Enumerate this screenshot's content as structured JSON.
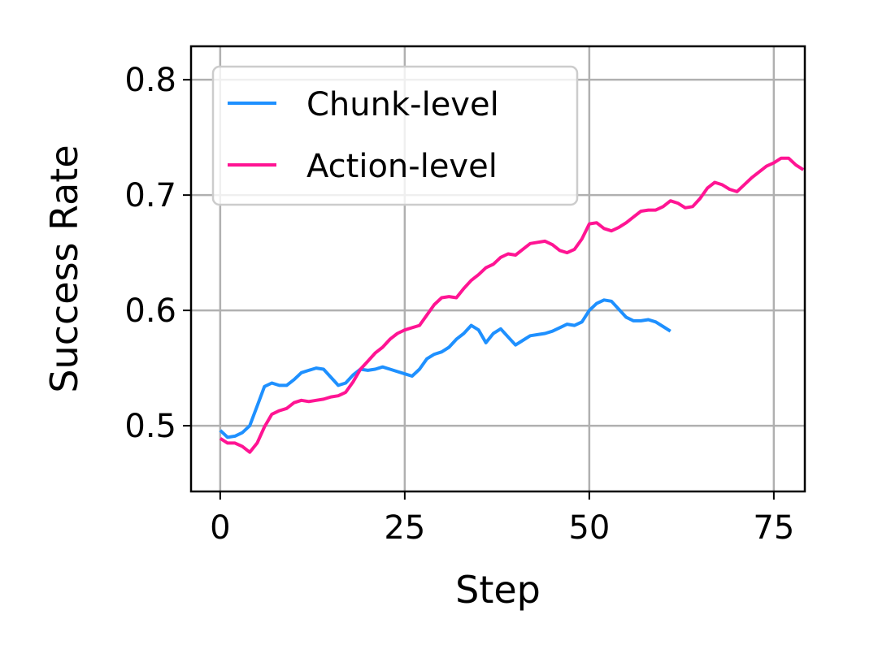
{
  "chart_data": {
    "type": "line",
    "title": "",
    "xlabel": "Step",
    "ylabel": "Success Rate",
    "xlim": [
      -3.95,
      79.2
    ],
    "ylim": [
      0.443,
      0.829
    ],
    "xticks": [
      0,
      25,
      50,
      75
    ],
    "xtick_labels": [
      "0",
      "25",
      "50",
      "75"
    ],
    "yticks": [
      0.5,
      0.6,
      0.7,
      0.8
    ],
    "ytick_labels": [
      "0.5",
      "0.6",
      "0.7",
      "0.8"
    ],
    "grid": true,
    "legend_position": "top-left",
    "series": [
      {
        "name": "Chunk-level",
        "color": "#1e90ff",
        "x": [
          0,
          1,
          2,
          3,
          4,
          5,
          6,
          7,
          8,
          9,
          10,
          11,
          12,
          13,
          14,
          15,
          16,
          17,
          18,
          19,
          20,
          21,
          22,
          23,
          24,
          25,
          26,
          27,
          28,
          29,
          30,
          31,
          32,
          33,
          34,
          35,
          36,
          37,
          38,
          39,
          40,
          41,
          42,
          43,
          44,
          45,
          46,
          47,
          48,
          49,
          50,
          51,
          52,
          53,
          54,
          55,
          56,
          57,
          58,
          59,
          60,
          61
        ],
        "y": [
          0.496,
          0.49,
          0.491,
          0.494,
          0.5,
          0.517,
          0.534,
          0.537,
          0.535,
          0.535,
          0.54,
          0.546,
          0.548,
          0.55,
          0.549,
          0.542,
          0.535,
          0.537,
          0.544,
          0.549,
          0.548,
          0.549,
          0.551,
          0.549,
          0.547,
          0.545,
          0.543,
          0.549,
          0.558,
          0.562,
          0.564,
          0.568,
          0.575,
          0.58,
          0.587,
          0.583,
          0.572,
          0.58,
          0.584,
          0.577,
          0.57,
          0.574,
          0.578,
          0.579,
          0.58,
          0.582,
          0.585,
          0.588,
          0.587,
          0.59,
          0.6,
          0.606,
          0.609,
          0.608,
          0.601,
          0.594,
          0.591,
          0.591,
          0.592,
          0.59,
          0.586,
          0.582
        ]
      },
      {
        "name": "Action-level",
        "color": "#ff1493",
        "x": [
          0,
          1,
          2,
          3,
          4,
          5,
          6,
          7,
          8,
          9,
          10,
          11,
          12,
          13,
          14,
          15,
          16,
          17,
          18,
          19,
          20,
          21,
          22,
          23,
          24,
          25,
          26,
          27,
          28,
          29,
          30,
          31,
          32,
          33,
          34,
          35,
          36,
          37,
          38,
          39,
          40,
          41,
          42,
          43,
          44,
          45,
          46,
          47,
          48,
          49,
          50,
          51,
          52,
          53,
          54,
          55,
          56,
          57,
          58,
          59,
          60,
          61,
          62,
          63,
          64,
          65,
          66,
          67,
          68,
          69,
          70,
          71,
          72,
          73,
          74,
          75,
          76,
          77,
          78,
          79
        ],
        "y": [
          0.489,
          0.485,
          0.485,
          0.482,
          0.477,
          0.485,
          0.499,
          0.51,
          0.513,
          0.515,
          0.52,
          0.522,
          0.521,
          0.522,
          0.523,
          0.525,
          0.526,
          0.529,
          0.538,
          0.549,
          0.556,
          0.563,
          0.568,
          0.575,
          0.58,
          0.583,
          0.585,
          0.587,
          0.596,
          0.605,
          0.611,
          0.612,
          0.611,
          0.619,
          0.626,
          0.631,
          0.637,
          0.64,
          0.646,
          0.649,
          0.648,
          0.653,
          0.658,
          0.659,
          0.66,
          0.657,
          0.652,
          0.65,
          0.653,
          0.662,
          0.675,
          0.676,
          0.671,
          0.669,
          0.672,
          0.676,
          0.681,
          0.686,
          0.687,
          0.687,
          0.69,
          0.695,
          0.693,
          0.689,
          0.69,
          0.697,
          0.706,
          0.711,
          0.709,
          0.705,
          0.703,
          0.709,
          0.715,
          0.72,
          0.725,
          0.728,
          0.732,
          0.732,
          0.726,
          0.722
        ]
      }
    ]
  }
}
